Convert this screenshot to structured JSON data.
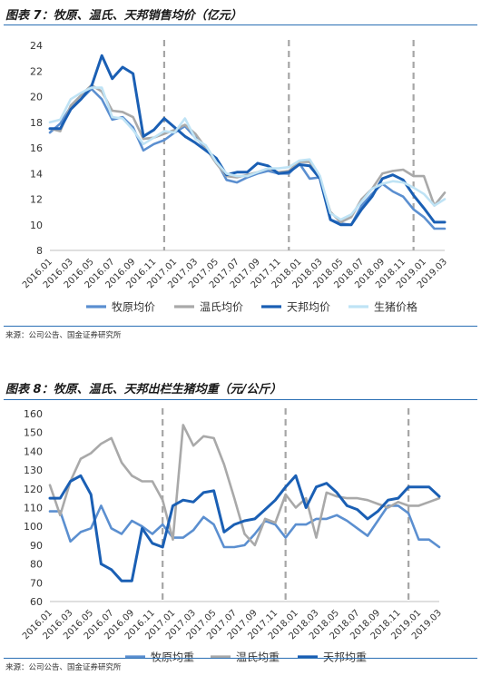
{
  "figures": [
    {
      "title": "图表 7：牧原、温氏、天邦销售均价（亿元）",
      "source": "来源：公司公告、国金证券研究所"
    },
    {
      "title": "图表 8：牧原、温氏、天邦出栏生猪均重（元/公斤）",
      "source": "来源：公司公告、国金证券研究所"
    }
  ],
  "chart_data": [
    {
      "type": "line",
      "title": "图表 7：牧原、温氏、天邦销售均价（亿元）",
      "xlabel": "",
      "ylabel": "",
      "ylim": [
        8,
        24
      ],
      "yticks": [
        8,
        10,
        12,
        14,
        16,
        18,
        20,
        22,
        24
      ],
      "grid": false,
      "legend": "bottom",
      "x": [
        "2016.01",
        "2016.02",
        "2016.03",
        "2016.04",
        "2016.05",
        "2016.06",
        "2016.07",
        "2016.08",
        "2016.09",
        "2016.10",
        "2016.11",
        "2016.12",
        "2017.01",
        "2017.02",
        "2017.03",
        "2017.04",
        "2017.05",
        "2017.06",
        "2017.07",
        "2017.08",
        "2017.09",
        "2017.10",
        "2017.11",
        "2017.12",
        "2018.01",
        "2018.02",
        "2018.03",
        "2018.04",
        "2018.05",
        "2018.06",
        "2018.07",
        "2018.08",
        "2018.09",
        "2018.10",
        "2018.11",
        "2018.12",
        "2019.01",
        "2019.02",
        "2019.03"
      ],
      "xtick_labels": [
        "2016.01",
        "2016.03",
        "2016.05",
        "2016.07",
        "2016.09",
        "2016.11",
        "2017.01",
        "2017.03",
        "2017.05",
        "2017.07",
        "2017.09",
        "2017.11",
        "2018.01",
        "2018.03",
        "2018.05",
        "2018.07",
        "2018.09",
        "2018.11",
        "2019.01",
        "2019.03"
      ],
      "vlines": [
        "2016.12",
        "2017.12",
        "2018.12"
      ],
      "series": [
        {
          "name": "牧原均价",
          "color": "#5b8fd0",
          "width": 2.6,
          "values": [
            17.2,
            17.9,
            19.2,
            19.8,
            20.6,
            19.8,
            18.2,
            18.4,
            17.6,
            15.8,
            16.3,
            16.6,
            17.2,
            17.7,
            16.8,
            16.0,
            15.0,
            13.5,
            13.3,
            13.7,
            14.0,
            14.2,
            14.0,
            14.0,
            14.8,
            13.6,
            13.7,
            10.4,
            10.1,
            10.0,
            11.5,
            12.4,
            13.2,
            12.6,
            12.2,
            11.2,
            10.6,
            9.7,
            9.7
          ]
        },
        {
          "name": "温氏均价",
          "color": "#a9a9a9",
          "width": 2.6,
          "values": [
            17.5,
            17.3,
            19.3,
            20.1,
            20.9,
            20.4,
            18.9,
            18.8,
            18.4,
            16.7,
            16.8,
            17.1,
            17.4,
            17.8,
            17.1,
            16.0,
            14.8,
            13.8,
            13.7,
            13.9,
            14.1,
            14.4,
            14.1,
            14.2,
            14.9,
            14.9,
            13.6,
            11.0,
            10.2,
            10.6,
            12.0,
            12.8,
            14.0,
            14.2,
            14.3,
            13.8,
            13.8,
            11.5,
            12.5
          ]
        },
        {
          "name": "天邦均价",
          "color": "#1a5fb4",
          "width": 3.0,
          "values": [
            17.5,
            17.5,
            19.0,
            19.8,
            20.8,
            23.2,
            21.4,
            22.3,
            21.8,
            16.9,
            17.4,
            18.3,
            17.6,
            16.9,
            16.4,
            15.8,
            15.2,
            13.9,
            14.1,
            14.1,
            14.8,
            14.6,
            14.0,
            14.1,
            14.7,
            14.6,
            13.6,
            10.4,
            10.0,
            10.0,
            11.2,
            12.2,
            13.6,
            13.9,
            13.5,
            12.3,
            11.3,
            10.2,
            10.2
          ]
        },
        {
          "name": "生猪价格",
          "color": "#bfe3f5",
          "width": 2.6,
          "values": [
            18.0,
            18.2,
            19.8,
            20.3,
            20.7,
            20.7,
            18.4,
            18.3,
            17.4,
            16.3,
            16.8,
            17.3,
            17.2,
            18.3,
            16.7,
            16.2,
            14.9,
            14.0,
            13.8,
            13.8,
            14.1,
            14.4,
            14.4,
            14.5,
            15.0,
            15.1,
            13.8,
            10.9,
            10.4,
            10.8,
            11.8,
            12.8,
            13.2,
            13.4,
            13.3,
            12.9,
            12.4,
            11.5,
            12.0
          ]
        }
      ]
    },
    {
      "type": "line",
      "title": "图表 8：牧原、温氏、天邦出栏生猪均重（元/公斤）",
      "xlabel": "",
      "ylabel": "",
      "ylim": [
        60,
        160
      ],
      "yticks": [
        60,
        70,
        80,
        90,
        100,
        110,
        120,
        130,
        140,
        150,
        160
      ],
      "grid": false,
      "legend": "bottom",
      "x": [
        "2016.01",
        "2016.02",
        "2016.03",
        "2016.04",
        "2016.05",
        "2016.06",
        "2016.07",
        "2016.08",
        "2016.09",
        "2016.10",
        "2016.11",
        "2016.12",
        "2017.01",
        "2017.02",
        "2017.03",
        "2017.04",
        "2017.05",
        "2017.06",
        "2017.07",
        "2017.08",
        "2017.09",
        "2017.10",
        "2017.11",
        "2017.12",
        "2018.01",
        "2018.02",
        "2018.03",
        "2018.04",
        "2018.05",
        "2018.06",
        "2018.07",
        "2018.08",
        "2018.09",
        "2018.10",
        "2018.11",
        "2018.12",
        "2019.01",
        "2019.02",
        "2019.03"
      ],
      "xtick_labels": [
        "2016.01",
        "2016.03",
        "2016.05",
        "2016.07",
        "2016.09",
        "2016.11",
        "2017.01",
        "2017.03",
        "2017.05",
        "2017.07",
        "2017.09",
        "2017.11",
        "2018.01",
        "2018.03",
        "2018.05",
        "2018.07",
        "2018.09",
        "2018.11",
        "2019.01",
        "2019.03"
      ],
      "vlines": [
        "2016.12",
        "2017.12",
        "2018.12"
      ],
      "series": [
        {
          "name": "牧原均重",
          "color": "#5b8fd0",
          "width": 2.6,
          "values": [
            108,
            108,
            92,
            97,
            99,
            111,
            99,
            96,
            103,
            100,
            96,
            101,
            94,
            94,
            98,
            105,
            101,
            89,
            89,
            90,
            96,
            103,
            101,
            94,
            101,
            101,
            104,
            104,
            106,
            103,
            99,
            95,
            103,
            111,
            111,
            107,
            93,
            93,
            89
          ]
        },
        {
          "name": "温氏均重",
          "color": "#a9a9a9",
          "width": 2.6,
          "values": [
            122,
            106,
            124,
            136,
            139,
            144,
            147,
            134,
            127,
            124,
            124,
            114,
            93,
            154,
            143,
            148,
            147,
            133,
            115,
            96,
            90,
            104,
            102,
            117,
            110,
            115,
            94,
            118,
            116,
            115,
            115,
            114,
            112,
            110,
            113,
            111,
            111,
            113,
            115
          ]
        },
        {
          "name": "天邦均重",
          "color": "#1a5fb4",
          "width": 3.0,
          "values": [
            115,
            115,
            124,
            127,
            117,
            80,
            77,
            71,
            71,
            99,
            91,
            89,
            111,
            114,
            113,
            118,
            119,
            97,
            101,
            103,
            104,
            109,
            114,
            121,
            127,
            110,
            121,
            123,
            118,
            111,
            109,
            104,
            108,
            114,
            115,
            121,
            121,
            121,
            116
          ]
        }
      ]
    }
  ]
}
